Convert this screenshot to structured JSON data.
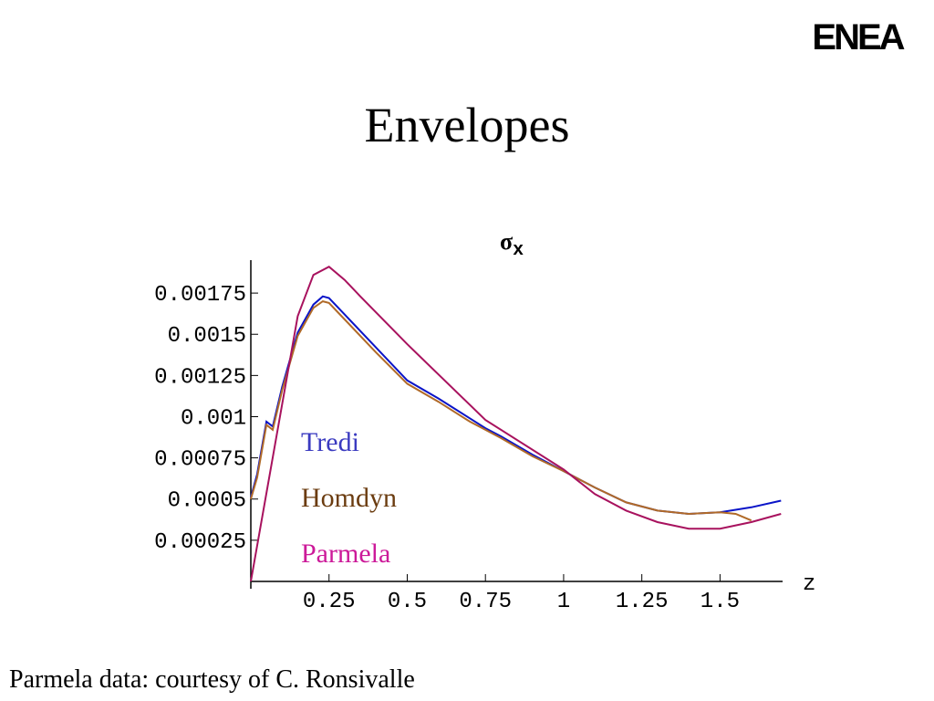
{
  "logo": "ENEA",
  "footer": "Parmela data: courtesy of C. Ronsivalle",
  "chart_data": {
    "type": "line",
    "title": "Envelopes",
    "subtitle": "σ",
    "subtitle_sub": "x",
    "x_label": "z",
    "xlim": [
      0,
      1.7
    ],
    "ylim": [
      0,
      0.00195
    ],
    "xticks": [
      0.25,
      0.5,
      0.75,
      1,
      1.25,
      1.5
    ],
    "yticks": [
      0.00025,
      0.0005,
      0.00075,
      0.001,
      0.00125,
      0.0015,
      0.00175
    ],
    "grid": false,
    "series": [
      {
        "name": "Tredi",
        "color": "#0a14c8",
        "label_color": "#3a3ac0",
        "x": [
          0,
          0.02,
          0.05,
          0.07,
          0.1,
          0.15,
          0.2,
          0.23,
          0.25,
          0.3,
          0.4,
          0.5,
          0.6,
          0.7,
          0.75,
          0.8,
          0.9,
          1.0,
          1.1,
          1.2,
          1.3,
          1.4,
          1.5,
          1.6,
          1.695
        ],
        "values": [
          0.00051,
          0.00065,
          0.00097,
          0.00094,
          0.00118,
          0.00151,
          0.00168,
          0.00173,
          0.00172,
          0.00162,
          0.00142,
          0.00122,
          0.00111,
          0.00099,
          0.00093,
          0.00088,
          0.00077,
          0.00067,
          0.00057,
          0.00048,
          0.00043,
          0.00041,
          0.00042,
          0.00045,
          0.00049
        ]
      },
      {
        "name": "Homdyn",
        "color": "#b06a28",
        "label_color": "#6b3c10",
        "x": [
          0,
          0.02,
          0.05,
          0.07,
          0.1,
          0.15,
          0.2,
          0.23,
          0.25,
          0.3,
          0.4,
          0.5,
          0.6,
          0.7,
          0.75,
          0.8,
          0.9,
          1.0,
          1.1,
          1.2,
          1.3,
          1.4,
          1.5,
          1.55,
          1.6
        ],
        "values": [
          0.0005,
          0.00063,
          0.00095,
          0.00092,
          0.00116,
          0.00149,
          0.00166,
          0.0017,
          0.00169,
          0.00159,
          0.00139,
          0.0012,
          0.00109,
          0.00097,
          0.00092,
          0.00087,
          0.00076,
          0.00067,
          0.00057,
          0.00048,
          0.00043,
          0.00041,
          0.00042,
          0.00041,
          0.00037
        ]
      },
      {
        "name": "Parmela",
        "color": "#a8125e",
        "label_color": "#cc1a99",
        "x": [
          0,
          0.15,
          0.2,
          0.25,
          0.3,
          0.35,
          0.5,
          0.75,
          1.0,
          1.1,
          1.2,
          1.3,
          1.4,
          1.5,
          1.6,
          1.695
        ],
        "values": [
          0,
          0.00161,
          0.00186,
          0.00191,
          0.00183,
          0.00173,
          0.00144,
          0.00098,
          0.00068,
          0.00053,
          0.00043,
          0.00036,
          0.00032,
          0.00032,
          0.00036,
          0.00041
        ]
      }
    ]
  }
}
